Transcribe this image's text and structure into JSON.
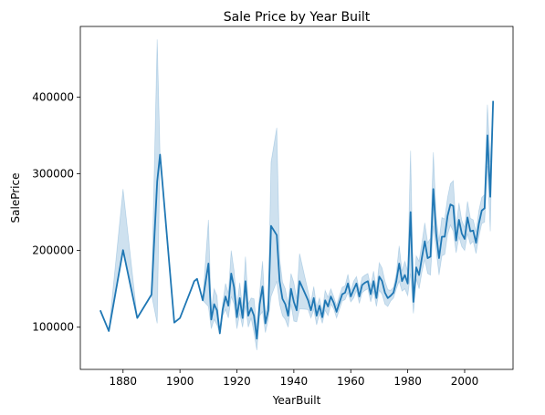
{
  "chart_data": {
    "type": "line",
    "title": "Sale Price by Year Built",
    "xlabel": "YearBuilt",
    "ylabel": "SalePrice",
    "xlim": [
      1865,
      2017
    ],
    "ylim": [
      45000,
      492000
    ],
    "xticks": [
      1880,
      1900,
      1920,
      1940,
      1960,
      1980,
      2000
    ],
    "yticks": [
      100000,
      200000,
      300000,
      400000
    ],
    "grid": false,
    "series": [
      {
        "color": "#1f77b4",
        "band_color": "#1f77b4",
        "x": [
          1872,
          1875,
          1880,
          1885,
          1890,
          1892,
          1893,
          1898,
          1900,
          1904,
          1905,
          1906,
          1908,
          1910,
          1911,
          1912,
          1913,
          1914,
          1915,
          1916,
          1917,
          1918,
          1919,
          1920,
          1921,
          1922,
          1923,
          1924,
          1925,
          1926,
          1927,
          1928,
          1929,
          1930,
          1931,
          1932,
          1934,
          1935,
          1936,
          1937,
          1938,
          1939,
          1940,
          1941,
          1942,
          1945,
          1946,
          1947,
          1948,
          1949,
          1950,
          1951,
          1952,
          1953,
          1954,
          1955,
          1956,
          1957,
          1958,
          1959,
          1960,
          1961,
          1962,
          1963,
          1964,
          1965,
          1966,
          1967,
          1968,
          1969,
          1970,
          1971,
          1972,
          1973,
          1974,
          1975,
          1976,
          1977,
          1978,
          1979,
          1980,
          1981,
          1982,
          1983,
          1984,
          1985,
          1986,
          1987,
          1988,
          1989,
          1990,
          1991,
          1992,
          1993,
          1994,
          1995,
          1996,
          1997,
          1998,
          1999,
          2000,
          2001,
          2002,
          2003,
          2004,
          2005,
          2006,
          2007,
          2008,
          2009,
          2010
        ],
        "y": [
          122000,
          95000,
          200500,
          112000,
          142500,
          290000,
          325000,
          106000,
          112000,
          150000,
          160000,
          163000,
          135000,
          183000,
          110000,
          130000,
          122000,
          92000,
          123000,
          140000,
          128000,
          170000,
          152000,
          113000,
          138000,
          112000,
          160000,
          115000,
          125000,
          115000,
          85000,
          130000,
          153000,
          105000,
          122000,
          232000,
          220000,
          160000,
          137000,
          130000,
          115000,
          150000,
          133000,
          122000,
          160000,
          135000,
          122000,
          138000,
          115000,
          128000,
          113000,
          135000,
          127000,
          140000,
          132000,
          120000,
          132000,
          143000,
          145000,
          157000,
          140000,
          149000,
          157000,
          140000,
          155000,
          158000,
          160000,
          143000,
          160000,
          138000,
          166000,
          160000,
          145000,
          138000,
          141000,
          145000,
          160000,
          183000,
          160000,
          168000,
          157000,
          250000,
          133000,
          178000,
          168000,
          191000,
          212000,
          190000,
          192000,
          280000,
          222000,
          190000,
          218000,
          218000,
          245000,
          260000,
          258000,
          213000,
          240000,
          222000,
          215000,
          243000,
          225000,
          226000,
          210000,
          235000,
          252000,
          255000,
          350000,
          270000,
          395000
        ],
        "ci_low": [
          122000,
          95000,
          200500,
          112000,
          142500,
          105000,
          325000,
          106000,
          112000,
          150000,
          160000,
          163000,
          135000,
          127000,
          98000,
          110000,
          103000,
          92000,
          115000,
          123000,
          112000,
          140000,
          130000,
          98000,
          118000,
          100000,
          128000,
          100000,
          112000,
          93000,
          70000,
          115000,
          120000,
          93000,
          110000,
          140000,
          160000,
          130000,
          115000,
          110000,
          100000,
          130000,
          108000,
          107000,
          124000,
          123000,
          112000,
          123000,
          103000,
          118000,
          105000,
          122000,
          115000,
          130000,
          124000,
          112000,
          123000,
          134000,
          136000,
          145000,
          133000,
          138000,
          148000,
          131000,
          145000,
          148000,
          150000,
          133000,
          147000,
          127000,
          148000,
          143000,
          130000,
          127000,
          134000,
          138000,
          150000,
          160000,
          147000,
          150000,
          141000,
          170000,
          118000,
          163000,
          150000,
          172000,
          188000,
          170000,
          168000,
          232000,
          200000,
          168000,
          193000,
          195000,
          221000,
          233000,
          225000,
          197000,
          218000,
          205000,
          200000,
          222000,
          208000,
          212000,
          196000,
          218000,
          235000,
          237000,
          310000,
          225000,
          395000
        ],
        "ci_high": [
          122000,
          95000,
          280000,
          112000,
          142500,
          475000,
          325000,
          106000,
          112000,
          150000,
          160000,
          163000,
          135000,
          240000,
          122000,
          150000,
          141000,
          92000,
          131000,
          157000,
          144000,
          200000,
          174000,
          128000,
          158000,
          124000,
          192000,
          130000,
          138000,
          137000,
          100000,
          145000,
          186000,
          117000,
          134000,
          315000,
          360000,
          190000,
          159000,
          150000,
          130000,
          170000,
          158000,
          137000,
          196000,
          147000,
          132000,
          153000,
          127000,
          138000,
          121000,
          148000,
          139000,
          150000,
          140000,
          128000,
          141000,
          152000,
          154000,
          169000,
          147000,
          160000,
          166000,
          149000,
          165000,
          168000,
          170000,
          153000,
          173000,
          149000,
          184000,
          177000,
          160000,
          149000,
          148000,
          152000,
          170000,
          206000,
          173000,
          186000,
          173000,
          330000,
          148000,
          193000,
          186000,
          210000,
          236000,
          210000,
          216000,
          328000,
          244000,
          212000,
          243000,
          241000,
          269000,
          287000,
          291000,
          229000,
          262000,
          239000,
          230000,
          264000,
          242000,
          240000,
          224000,
          252000,
          269000,
          273000,
          390000,
          315000,
          395000
        ]
      }
    ]
  }
}
